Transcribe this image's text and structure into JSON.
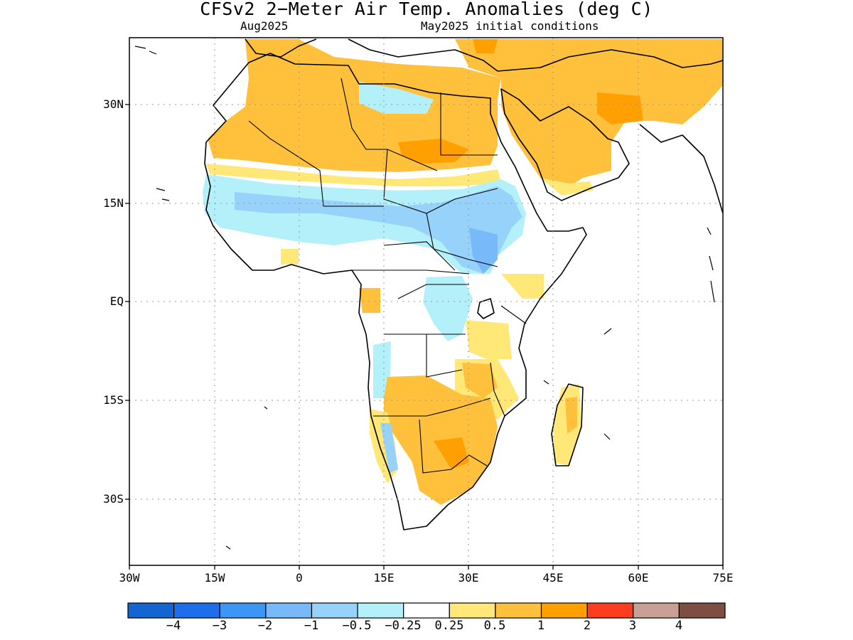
{
  "title": "CFSv2 2-Meter Air Temp. Anomalies (deg C)",
  "subtitle_left": "Aug2025",
  "subtitle_right": "May2025 initial conditions",
  "lat_labels": [
    "30N",
    "15N",
    "EQ",
    "15S",
    "30S"
  ],
  "lon_labels": [
    "30W",
    "15W",
    "0",
    "15E",
    "30E",
    "45E",
    "60E",
    "75E"
  ],
  "colorbar": {
    "colors": [
      "#1464d2",
      "#1e6eeb",
      "#3c96f5",
      "#78b9fa",
      "#96d2fa",
      "#b4f0fa",
      "#ffffff",
      "#ffe878",
      "#ffc03c",
      "#ffa000",
      "#ff3c1e",
      "#c8a096",
      "#7d4e42"
    ],
    "labels": [
      "-4",
      "-3",
      "-2",
      "-1",
      "-0.5",
      "-0.25",
      "0.25",
      "0.5",
      "1",
      "2",
      "3",
      "4"
    ]
  }
}
